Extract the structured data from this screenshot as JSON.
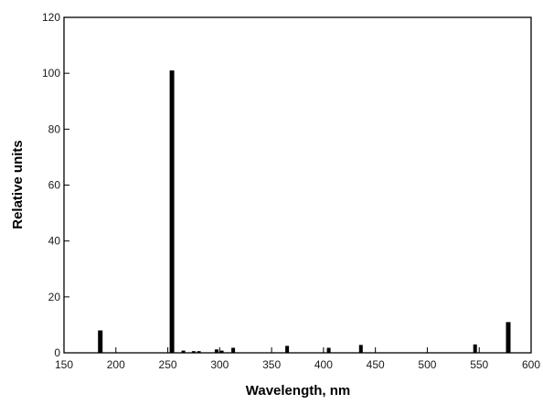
{
  "chart_data": {
    "type": "bar",
    "title": "",
    "xlabel": "Wavelength, nm",
    "ylabel": "Relative units",
    "xlim": [
      150,
      600
    ],
    "ylim": [
      0,
      120
    ],
    "xticks": [
      "150",
      "200",
      "250",
      "300",
      "350",
      "400",
      "450",
      "500",
      "550",
      "600"
    ],
    "yticks": [
      "0",
      "20",
      "40",
      "60",
      "80",
      "100",
      "120"
    ],
    "grid": false,
    "legend": "none",
    "series": [
      {
        "x": [
          185,
          254,
          265,
          275,
          280,
          297,
          302,
          313,
          365,
          405,
          436,
          546,
          578
        ],
        "values": [
          8,
          101,
          0.8,
          0.6,
          0.6,
          1.2,
          0.8,
          1.8,
          2.5,
          1.8,
          2.8,
          3,
          11
        ]
      }
    ],
    "colors": {
      "bar": "#000000",
      "axis": "#000000",
      "text": "#1a1a1a"
    }
  }
}
